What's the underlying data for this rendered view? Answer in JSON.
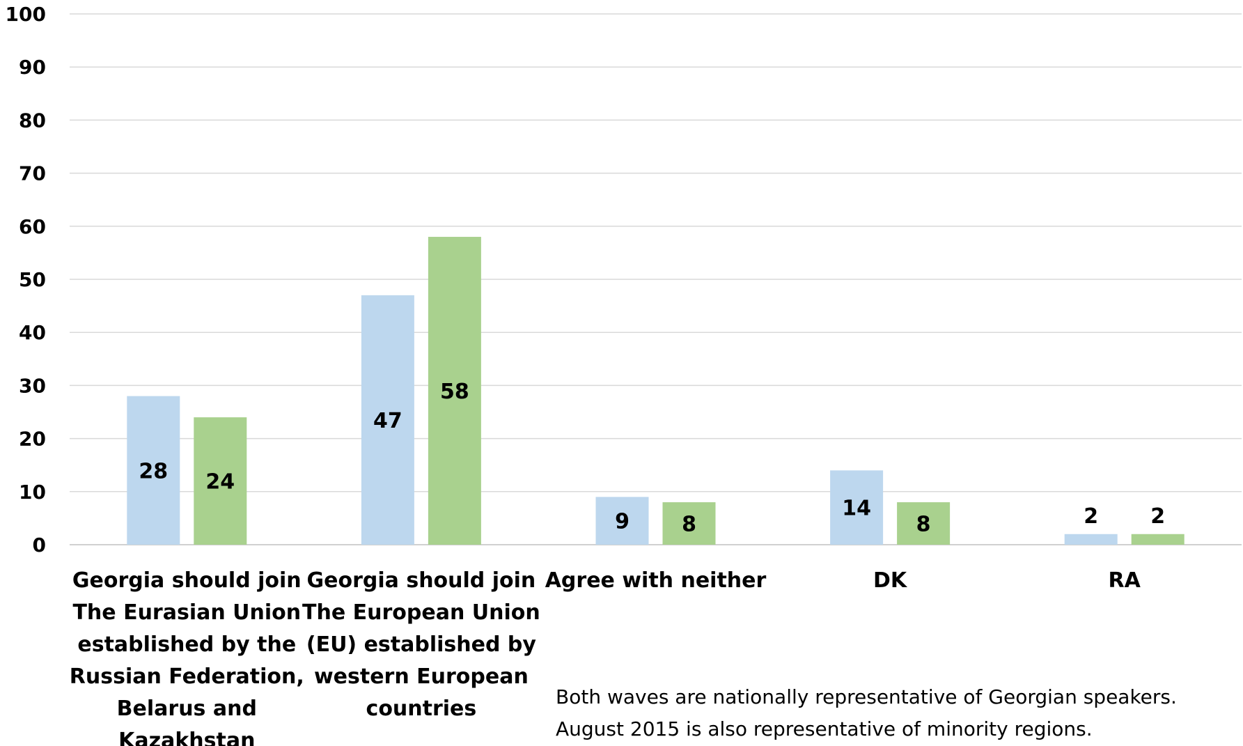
{
  "chart_data": {
    "type": "bar",
    "title": "",
    "xlabel": "",
    "ylabel": "",
    "ylim": [
      0,
      100
    ],
    "yticks": [
      0,
      10,
      20,
      30,
      40,
      50,
      60,
      70,
      80,
      90,
      100
    ],
    "grid": true,
    "categories": [
      [
        "Georgia should join",
        "The Eurasian Union",
        "established by the",
        "Russian Federation,",
        "Belarus and",
        "Kazakhstan"
      ],
      [
        "Georgia should  join",
        "The European Union",
        "(EU) established by",
        "western European",
        "countries"
      ],
      [
        "Agree with neither"
      ],
      [
        "DK"
      ],
      [
        "RA"
      ]
    ],
    "series": [
      {
        "color": "#bdd7ee",
        "values": [
          28,
          47,
          9,
          14,
          2
        ]
      },
      {
        "color": "#a9d18e",
        "values": [
          24,
          58,
          8,
          8,
          2
        ]
      }
    ],
    "data_labels": [
      [
        "28",
        "47",
        "9",
        "14",
        "2"
      ],
      [
        "24",
        "58",
        "8",
        "8",
        "2"
      ]
    ],
    "annotation": [
      "Both waves are nationally representative of Georgian speakers.",
      "August 2015 is also representative of minority regions."
    ]
  }
}
